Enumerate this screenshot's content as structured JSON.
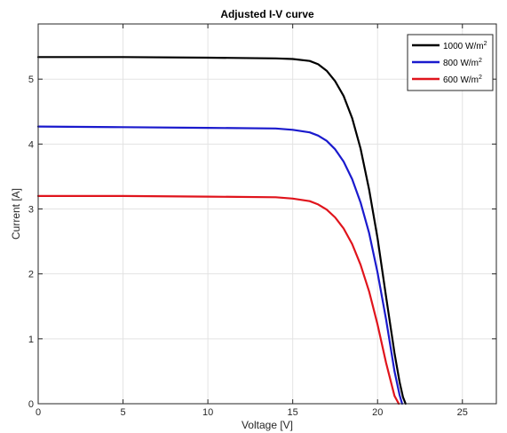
{
  "chart_data": {
    "type": "line",
    "title": "Adjusted I-V curve",
    "xlabel": "Voltage [V]",
    "ylabel": "Current [A]",
    "xlim": [
      0,
      27
    ],
    "ylim": [
      0,
      5.85
    ],
    "xticks": [
      0,
      5,
      10,
      15,
      20,
      25
    ],
    "xtick_labels": [
      "0",
      "5",
      "10",
      "15",
      "20",
      "25"
    ],
    "yticks": [
      0,
      1,
      2,
      3,
      4,
      5
    ],
    "ytick_labels": [
      "0",
      "1",
      "2",
      "3",
      "4",
      "5"
    ],
    "grid": true,
    "legend_position": "top-right",
    "series": [
      {
        "name": "1000 W/m",
        "name_superscript": "2",
        "color": "#000000",
        "x": [
          0,
          5,
          10,
          14,
          15,
          16,
          16.5,
          17,
          17.5,
          18,
          18.5,
          19,
          19.5,
          20,
          20.5,
          21,
          21.3,
          21.5,
          21.65
        ],
        "y": [
          5.34,
          5.34,
          5.33,
          5.32,
          5.31,
          5.28,
          5.23,
          5.13,
          4.97,
          4.74,
          4.4,
          3.93,
          3.3,
          2.55,
          1.65,
          0.78,
          0.33,
          0.1,
          0
        ]
      },
      {
        "name": "800 W/m",
        "name_superscript": "2",
        "color": "#1a1acd",
        "x": [
          0,
          5,
          10,
          14,
          15,
          16,
          16.5,
          17,
          17.5,
          18,
          18.5,
          19,
          19.5,
          20,
          20.5,
          21,
          21.3,
          21.45
        ],
        "y": [
          4.27,
          4.26,
          4.25,
          4.24,
          4.22,
          4.18,
          4.13,
          4.05,
          3.92,
          3.73,
          3.46,
          3.1,
          2.63,
          2.02,
          1.3,
          0.5,
          0.13,
          0
        ]
      },
      {
        "name": "600 W/m",
        "name_superscript": "2",
        "color": "#e0141c",
        "x": [
          0,
          5,
          10,
          14,
          15,
          16,
          16.5,
          17,
          17.5,
          18,
          18.5,
          19,
          19.5,
          20,
          20.5,
          21,
          21.25
        ],
        "y": [
          3.2,
          3.2,
          3.19,
          3.18,
          3.16,
          3.12,
          3.07,
          2.99,
          2.87,
          2.7,
          2.46,
          2.14,
          1.73,
          1.22,
          0.63,
          0.12,
          0
        ]
      }
    ]
  }
}
